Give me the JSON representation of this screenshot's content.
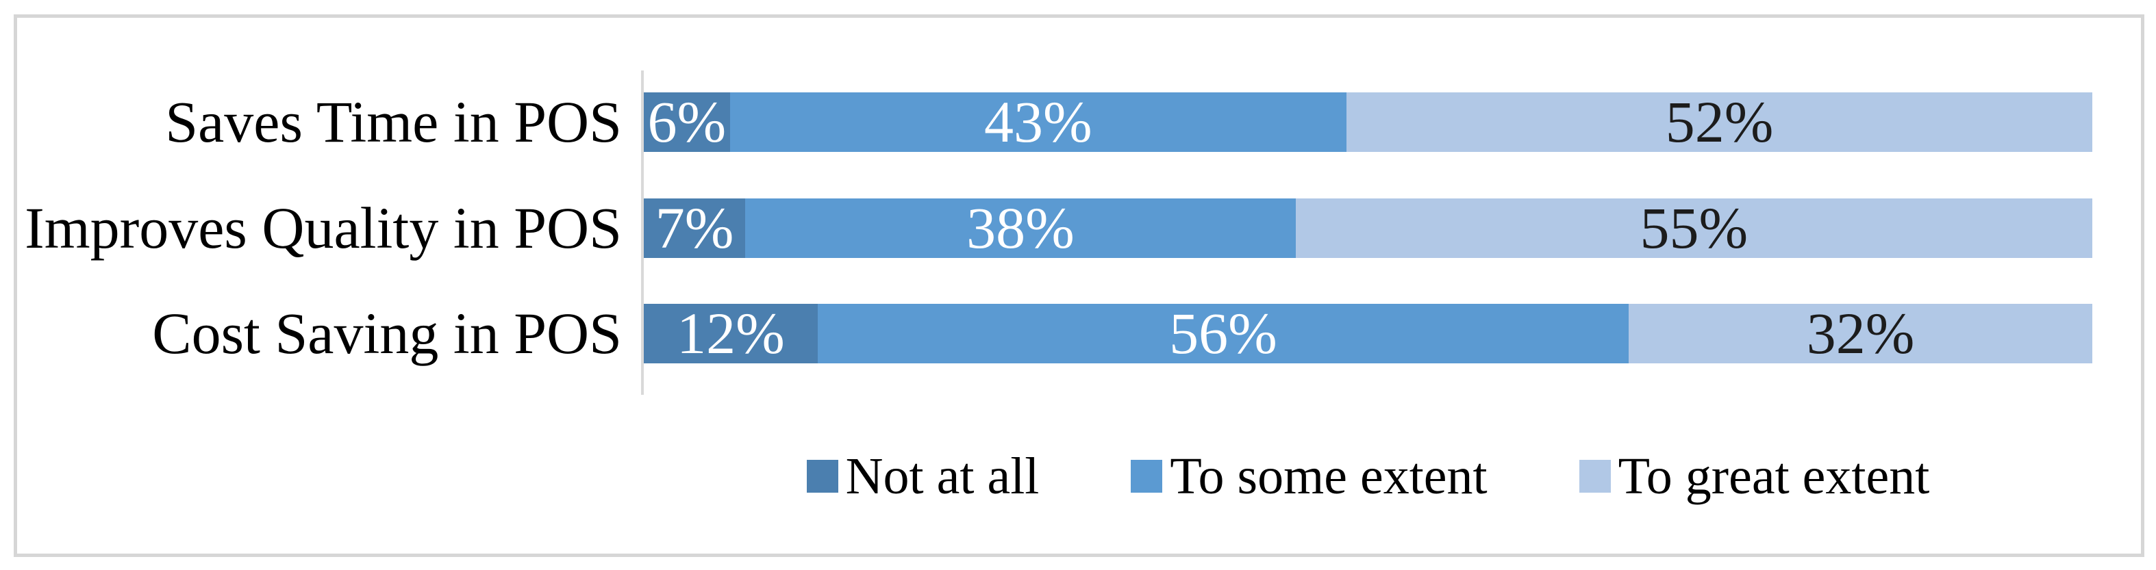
{
  "chart_data": {
    "type": "bar",
    "orientation": "horizontal",
    "stacked": true,
    "unit": "%",
    "title": "",
    "xlabel": "",
    "ylabel": "",
    "xlim": [
      0,
      100
    ],
    "grid": false,
    "legend_position": "bottom",
    "categories": [
      "Saves Time in POS",
      "Improves Quality in POS",
      "Cost Saving in POS"
    ],
    "series": [
      {
        "name": "Not at all",
        "color": "#4B7FAF",
        "values": [
          6,
          7,
          12
        ]
      },
      {
        "name": "To some extent",
        "color": "#5B9AD2",
        "values": [
          43,
          38,
          56
        ]
      },
      {
        "name": "To great extent",
        "color": "#B1C8E6",
        "values": [
          52,
          55,
          32
        ]
      }
    ],
    "data_labels": [
      [
        "6%",
        "43%",
        "52%"
      ],
      [
        "7%",
        "38%",
        "55%"
      ],
      [
        "12%",
        "56%",
        "32%"
      ]
    ]
  },
  "colors": {
    "frame_border": "#D6D6D6",
    "axis_line": "#D9D9D9",
    "label_on_dark": "#FFFFFF",
    "label_on_light": "#1C1C1C",
    "category_text": "#000000"
  }
}
